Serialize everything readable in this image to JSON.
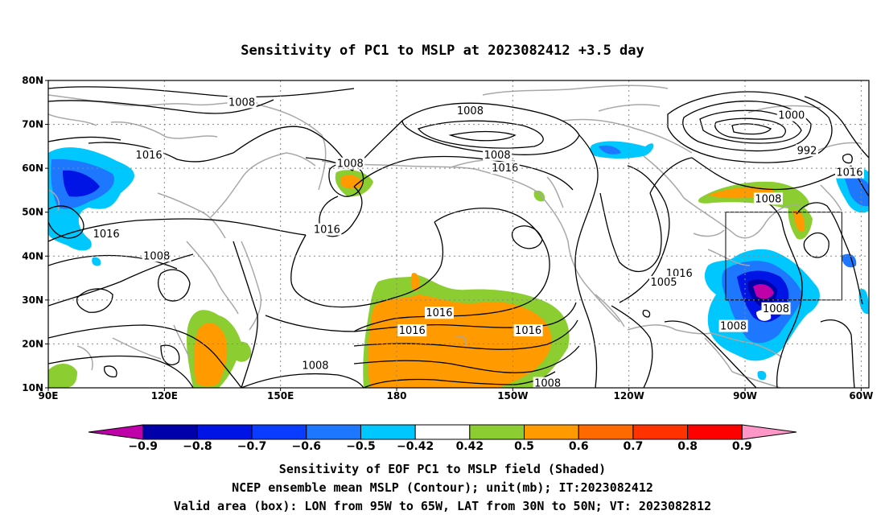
{
  "title": "Sensitivity of PC1 to MSLP at 2023082412 +3.5 day",
  "map": {
    "lon_range": [
      90,
      302
    ],
    "lat_range": [
      10,
      80
    ],
    "lon_ticks": [
      {
        "lon": 90,
        "label": "90E"
      },
      {
        "lon": 120,
        "label": "120E"
      },
      {
        "lon": 150,
        "label": "150E"
      },
      {
        "lon": 180,
        "label": "180"
      },
      {
        "lon": 210,
        "label": "150W"
      },
      {
        "lon": 240,
        "label": "120W"
      },
      {
        "lon": 270,
        "label": "90W"
      },
      {
        "lon": 300,
        "label": "60W"
      }
    ],
    "lat_ticks": [
      {
        "lat": 10,
        "label": "10N"
      },
      {
        "lat": 20,
        "label": "20N"
      },
      {
        "lat": 30,
        "label": "30N"
      },
      {
        "lat": 40,
        "label": "40N"
      },
      {
        "lat": 50,
        "label": "50N"
      },
      {
        "lat": 60,
        "label": "60N"
      },
      {
        "lat": 70,
        "label": "70N"
      },
      {
        "lat": 80,
        "label": "80N"
      }
    ],
    "valid_box": {
      "lon_min": 265,
      "lon_max": 295,
      "lat_min": 30,
      "lat_max": 50
    },
    "contour_labels": [
      {
        "text": "1008",
        "lon": 140,
        "lat": 75
      },
      {
        "text": "1008",
        "lon": 199,
        "lat": 73
      },
      {
        "text": "1000",
        "lon": 282,
        "lat": 72
      },
      {
        "text": "992",
        "lon": 286,
        "lat": 64
      },
      {
        "text": "1016",
        "lon": 116,
        "lat": 63
      },
      {
        "text": "1008",
        "lon": 206,
        "lat": 63
      },
      {
        "text": "1016",
        "lon": 208,
        "lat": 60
      },
      {
        "text": "1008",
        "lon": 168,
        "lat": 61
      },
      {
        "text": "1016",
        "lon": 297,
        "lat": 59
      },
      {
        "text": "1008",
        "lon": 276,
        "lat": 53
      },
      {
        "text": "1016",
        "lon": 105,
        "lat": 45
      },
      {
        "text": "1016",
        "lon": 162,
        "lat": 46
      },
      {
        "text": "1008",
        "lon": 118,
        "lat": 40
      },
      {
        "text": "1016",
        "lon": 253,
        "lat": 36
      },
      {
        "text": "1005",
        "lon": 249,
        "lat": 34
      },
      {
        "text": "1008",
        "lon": 278,
        "lat": 28
      },
      {
        "text": "1016",
        "lon": 191,
        "lat": 27
      },
      {
        "text": "1016",
        "lon": 184,
        "lat": 23
      },
      {
        "text": "1016",
        "lon": 214,
        "lat": 23
      },
      {
        "text": "1008",
        "lon": 267,
        "lat": 24
      },
      {
        "text": "1008",
        "lon": 159,
        "lat": 15
      },
      {
        "text": "1008",
        "lon": 219,
        "lat": 11
      }
    ]
  },
  "colorbar": {
    "colors": [
      "#c000a8",
      "#0000aa",
      "#0014e6",
      "#0a3cff",
      "#1e78ff",
      "#00c8ff",
      "#ffffff",
      "#8ccd32",
      "#ff9a00",
      "#ff6a00",
      "#ff3200",
      "#ff0000",
      "#ff96c8"
    ],
    "labels": [
      "-0.9",
      "-0.8",
      "-0.7",
      "-0.6",
      "-0.5",
      "-0.42",
      "0.42",
      "0.5",
      "0.6",
      "0.7",
      "0.8",
      "0.9"
    ]
  },
  "footer": {
    "line1": "Sensitivity of EOF PC1 to MSLP field (Shaded)",
    "line2": "NCEP ensemble mean MSLP (Contour); unit(mb); IT:2023082412",
    "line3": "Valid area (box): LON from 95W to 65W, LAT from 30N to 50N; VT: 2023082812"
  }
}
